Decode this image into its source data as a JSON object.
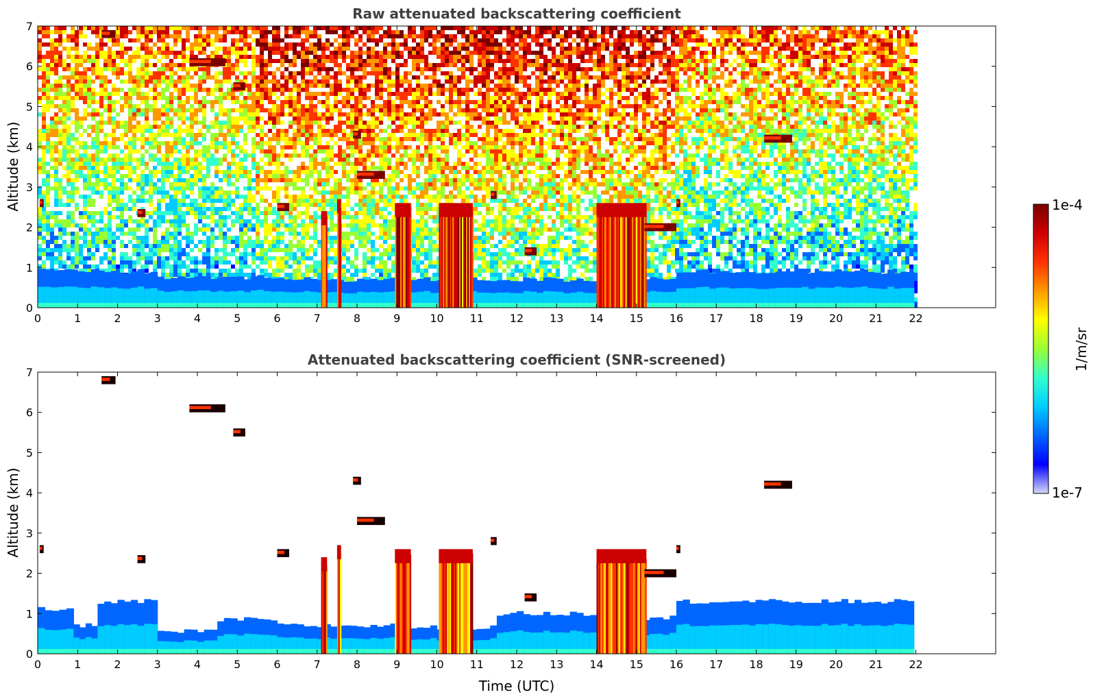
{
  "colors": {
    "colormap": [
      "#0000ff",
      "#0066ff",
      "#00ccff",
      "#33ffcc",
      "#99ff33",
      "#ffff00",
      "#ff9900",
      "#ff3300",
      "#cc0000",
      "#7a0000"
    ],
    "colormap_low": "#d8d8f8",
    "cloud_dark": "#1a0000"
  },
  "chart_data": [
    {
      "type": "heatmap",
      "title": "Raw attenuated backscattering coefficient",
      "xlabel": "",
      "ylabel": "Altitude (km)",
      "xlim": [
        0,
        24
      ],
      "ylim": [
        0,
        7
      ],
      "x_ticks": [
        "0",
        "1",
        "2",
        "3",
        "4",
        "5",
        "6",
        "7",
        "8",
        "9",
        "10",
        "11",
        "12",
        "13",
        "14",
        "15",
        "16",
        "17",
        "18",
        "19",
        "20",
        "21",
        "22"
      ],
      "y_ticks": [
        "0",
        "1",
        "2",
        "3",
        "4",
        "5",
        "6",
        "7"
      ],
      "data_end_time": 21.95,
      "screened": false,
      "boundary_layer": [
        {
          "t0": 0,
          "t1": 3,
          "top": 0.9
        },
        {
          "t0": 3,
          "t1": 6,
          "top": 0.75
        },
        {
          "t0": 6,
          "t1": 9,
          "top": 0.7
        },
        {
          "t0": 9,
          "t1": 14,
          "top": 0.7
        },
        {
          "t0": 14,
          "t1": 16,
          "top": 0.75
        },
        {
          "t0": 16,
          "t1": 21.95,
          "top": 0.9
        }
      ],
      "precipitation_shafts": [
        {
          "t0": 8.95,
          "t1": 9.35,
          "top": 2.6
        },
        {
          "t0": 10.05,
          "t1": 10.9,
          "top": 2.6
        },
        {
          "t0": 14.0,
          "t1": 15.25,
          "top": 2.6
        },
        {
          "t0": 7.1,
          "t1": 7.25,
          "top": 2.4
        },
        {
          "t0": 7.5,
          "t1": 7.6,
          "top": 2.7
        }
      ],
      "cloud_features": [
        {
          "t0": 1.6,
          "t1": 1.95,
          "alt": 6.8
        },
        {
          "t0": 3.8,
          "t1": 4.7,
          "alt": 6.1
        },
        {
          "t0": 4.9,
          "t1": 5.2,
          "alt": 5.5
        },
        {
          "t0": 6.0,
          "t1": 6.3,
          "alt": 2.5
        },
        {
          "t0": 7.9,
          "t1": 8.1,
          "alt": 4.3
        },
        {
          "t0": 8.0,
          "t1": 8.7,
          "alt": 3.3
        },
        {
          "t0": 11.35,
          "t1": 11.5,
          "alt": 2.8
        },
        {
          "t0": 12.2,
          "t1": 12.5,
          "alt": 1.4
        },
        {
          "t0": 15.2,
          "t1": 16.0,
          "alt": 2.0
        },
        {
          "t0": 16.0,
          "t1": 16.1,
          "alt": 2.6
        },
        {
          "t0": 0.05,
          "t1": 0.15,
          "alt": 2.6
        },
        {
          "t0": 2.5,
          "t1": 2.7,
          "alt": 2.35
        },
        {
          "t0": 18.2,
          "t1": 18.9,
          "alt": 4.2
        }
      ]
    },
    {
      "type": "heatmap",
      "title": "Attenuated backscattering coefficient (SNR-screened)",
      "xlabel": "Time (UTC)",
      "ylabel": "Altitude (km)",
      "xlim": [
        0,
        24
      ],
      "ylim": [
        0,
        7
      ],
      "x_ticks": [
        "0",
        "1",
        "2",
        "3",
        "4",
        "5",
        "6",
        "7",
        "8",
        "9",
        "10",
        "11",
        "12",
        "13",
        "14",
        "15",
        "16",
        "17",
        "18",
        "19",
        "20",
        "21",
        "22"
      ],
      "y_ticks": [
        "0",
        "1",
        "2",
        "3",
        "4",
        "5",
        "6",
        "7"
      ],
      "data_end_time": 21.95,
      "screened": true,
      "boundary_layer": [
        {
          "t0": 0,
          "t1": 0.9,
          "top": 1.1
        },
        {
          "t0": 0.9,
          "t1": 1.5,
          "top": 0.7
        },
        {
          "t0": 1.5,
          "t1": 3.0,
          "top": 1.3
        },
        {
          "t0": 3.0,
          "t1": 4.5,
          "top": 0.55
        },
        {
          "t0": 4.5,
          "t1": 6.0,
          "top": 0.85
        },
        {
          "t0": 6.0,
          "t1": 9.0,
          "top": 0.7
        },
        {
          "t0": 9.0,
          "t1": 11.5,
          "top": 0.65
        },
        {
          "t0": 11.5,
          "t1": 14.0,
          "top": 1.0
        },
        {
          "t0": 14.0,
          "t1": 16.0,
          "top": 0.9
        },
        {
          "t0": 16.0,
          "t1": 21.95,
          "top": 1.3
        }
      ],
      "precipitation_shafts": [
        {
          "t0": 8.95,
          "t1": 9.35,
          "top": 2.6
        },
        {
          "t0": 10.05,
          "t1": 10.9,
          "top": 2.6
        },
        {
          "t0": 14.0,
          "t1": 15.25,
          "top": 2.6
        },
        {
          "t0": 7.1,
          "t1": 7.25,
          "top": 2.4
        },
        {
          "t0": 7.5,
          "t1": 7.6,
          "top": 2.7
        }
      ],
      "cloud_features": [
        {
          "t0": 1.6,
          "t1": 1.95,
          "alt": 6.8
        },
        {
          "t0": 3.8,
          "t1": 4.7,
          "alt": 6.1
        },
        {
          "t0": 4.9,
          "t1": 5.2,
          "alt": 5.5
        },
        {
          "t0": 6.0,
          "t1": 6.3,
          "alt": 2.5
        },
        {
          "t0": 7.9,
          "t1": 8.1,
          "alt": 4.3
        },
        {
          "t0": 8.0,
          "t1": 8.7,
          "alt": 3.3
        },
        {
          "t0": 11.35,
          "t1": 11.5,
          "alt": 2.8
        },
        {
          "t0": 12.2,
          "t1": 12.5,
          "alt": 1.4
        },
        {
          "t0": 15.2,
          "t1": 16.0,
          "alt": 2.0
        },
        {
          "t0": 16.0,
          "t1": 16.1,
          "alt": 2.6
        },
        {
          "t0": 0.05,
          "t1": 0.15,
          "alt": 2.6
        },
        {
          "t0": 2.5,
          "t1": 2.7,
          "alt": 2.35
        },
        {
          "t0": 18.2,
          "t1": 18.9,
          "alt": 4.2
        }
      ]
    }
  ],
  "colorbar": {
    "label": "1/m/sr",
    "max_label": "1e-4",
    "min_label": "1e-7",
    "range": [
      1e-07,
      0.0001
    ],
    "scale": "log"
  }
}
